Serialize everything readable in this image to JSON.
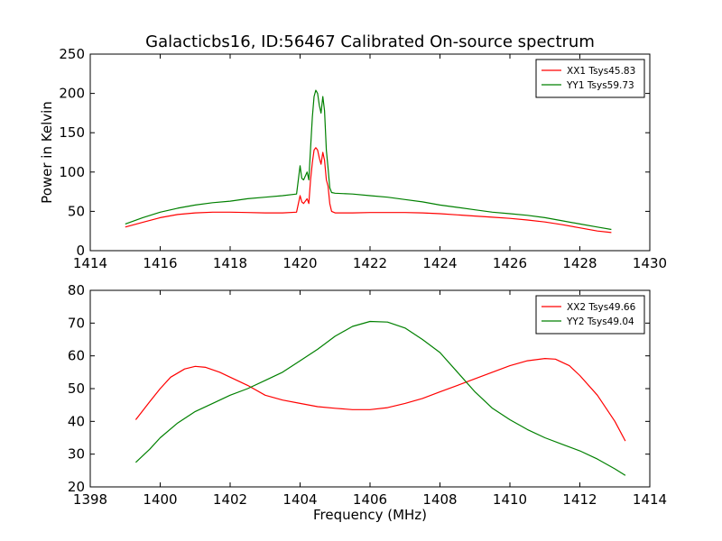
{
  "figure_title": "Galacticbs16, ID:56467 Calibrated On-source spectrum",
  "chart_data": [
    {
      "type": "line",
      "title": "Galacticbs16, ID:56467 Calibrated On-source spectrum",
      "xlabel": "",
      "ylabel": "Power in Kelvin",
      "xlim": [
        1414,
        1430
      ],
      "ylim": [
        0,
        250
      ],
      "xticks": [
        1414,
        1416,
        1418,
        1420,
        1422,
        1424,
        1426,
        1428,
        1430
      ],
      "yticks": [
        0,
        50,
        100,
        150,
        200,
        250
      ],
      "legend_position": "top-right",
      "series": [
        {
          "name": "XX1 Tsys45.83",
          "color": "#ff0000",
          "x": [
            1415.0,
            1415.5,
            1416.0,
            1416.5,
            1417.0,
            1417.5,
            1418.0,
            1418.5,
            1419.0,
            1419.5,
            1419.9,
            1420.0,
            1420.05,
            1420.1,
            1420.2,
            1420.25,
            1420.3,
            1420.35,
            1420.4,
            1420.45,
            1420.5,
            1420.55,
            1420.6,
            1420.65,
            1420.7,
            1420.75,
            1420.8,
            1420.85,
            1420.9,
            1421.0,
            1421.5,
            1422.0,
            1422.5,
            1423.0,
            1423.5,
            1424.0,
            1424.5,
            1425.0,
            1425.5,
            1426.0,
            1426.5,
            1427.0,
            1427.5,
            1428.0,
            1428.5,
            1428.9
          ],
          "y": [
            30,
            36,
            42,
            46,
            48,
            49,
            49,
            48.5,
            48,
            48,
            49,
            70,
            62,
            60,
            66,
            60,
            90,
            112,
            128,
            131,
            128,
            118,
            110,
            125,
            115,
            90,
            82,
            60,
            50,
            48,
            48,
            48.5,
            48.5,
            48.5,
            48,
            47,
            45.5,
            44,
            42.5,
            41,
            39,
            36.5,
            33,
            29,
            25,
            23
          ]
        },
        {
          "name": "YY1 Tsys59.73",
          "color": "#008000",
          "x": [
            1415.0,
            1415.5,
            1416.0,
            1416.5,
            1417.0,
            1417.5,
            1418.0,
            1418.5,
            1419.0,
            1419.5,
            1419.9,
            1420.0,
            1420.05,
            1420.1,
            1420.2,
            1420.25,
            1420.3,
            1420.35,
            1420.4,
            1420.45,
            1420.5,
            1420.55,
            1420.6,
            1420.65,
            1420.7,
            1420.75,
            1420.8,
            1420.85,
            1420.9,
            1421.0,
            1421.5,
            1422.0,
            1422.5,
            1423.0,
            1423.5,
            1424.0,
            1424.5,
            1425.0,
            1425.5,
            1426.0,
            1426.5,
            1427.0,
            1427.5,
            1428.0,
            1428.5,
            1428.9
          ],
          "y": [
            34,
            42,
            49,
            54,
            58,
            61,
            63,
            66,
            68,
            70,
            72,
            108,
            92,
            90,
            100,
            90,
            130,
            170,
            196,
            204,
            200,
            185,
            175,
            196,
            178,
            128,
            105,
            80,
            74,
            73,
            72,
            70,
            68,
            65,
            62,
            58,
            55,
            52,
            49,
            47,
            45,
            42,
            38,
            34,
            30,
            27
          ]
        }
      ]
    },
    {
      "type": "line",
      "title": "",
      "xlabel": "Frequency (MHz)",
      "ylabel": "",
      "xlim": [
        1398,
        1414
      ],
      "ylim": [
        20,
        80
      ],
      "xticks": [
        1398,
        1400,
        1402,
        1404,
        1406,
        1408,
        1410,
        1412,
        1414
      ],
      "yticks": [
        20,
        30,
        40,
        50,
        60,
        70,
        80
      ],
      "legend_position": "top-right",
      "series": [
        {
          "name": "XX2 Tsys49.66",
          "color": "#ff0000",
          "x": [
            1399.3,
            1399.7,
            1400.0,
            1400.3,
            1400.7,
            1401.0,
            1401.3,
            1401.7,
            1402.0,
            1402.5,
            1403.0,
            1403.5,
            1404.0,
            1404.5,
            1405.0,
            1405.5,
            1406.0,
            1406.5,
            1407.0,
            1407.5,
            1408.0,
            1408.5,
            1409.0,
            1409.5,
            1410.0,
            1410.5,
            1411.0,
            1411.3,
            1411.7,
            1412.0,
            1412.5,
            1413.0,
            1413.3
          ],
          "y": [
            40.5,
            46,
            50,
            53.5,
            56,
            56.8,
            56.5,
            55,
            53.5,
            51,
            48,
            46.5,
            45.5,
            44.5,
            44,
            43.6,
            43.6,
            44.2,
            45.5,
            47,
            49,
            51,
            53,
            55,
            57,
            58.5,
            59.2,
            59,
            57,
            54,
            48,
            40,
            34
          ]
        },
        {
          "name": "YY2 Tsys49.04",
          "color": "#008000",
          "x": [
            1399.3,
            1399.7,
            1400.0,
            1400.5,
            1401.0,
            1401.5,
            1402.0,
            1402.5,
            1403.0,
            1403.5,
            1404.0,
            1404.5,
            1405.0,
            1405.5,
            1406.0,
            1406.5,
            1407.0,
            1407.5,
            1408.0,
            1408.5,
            1409.0,
            1409.5,
            1410.0,
            1410.5,
            1411.0,
            1411.5,
            1412.0,
            1412.5,
            1413.0,
            1413.3
          ],
          "y": [
            27.5,
            31.5,
            35,
            39.5,
            43,
            45.5,
            48,
            50,
            52.5,
            55,
            58.5,
            62,
            66,
            69,
            70.5,
            70.3,
            68.5,
            65,
            61,
            55,
            49,
            44,
            40.5,
            37.5,
            35,
            33,
            31,
            28.5,
            25.5,
            23.5
          ]
        }
      ]
    }
  ]
}
